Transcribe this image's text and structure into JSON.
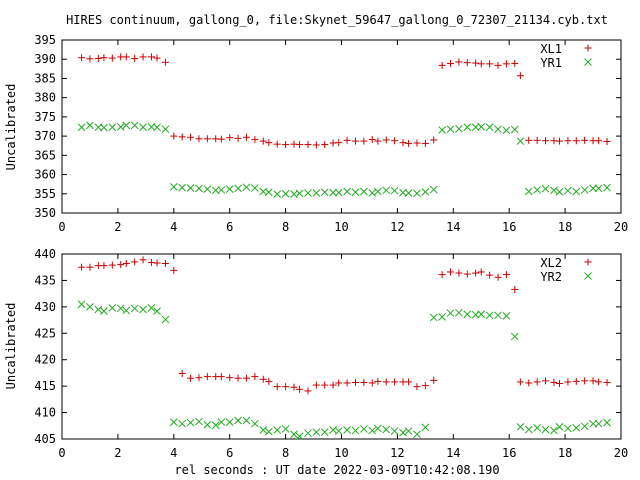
{
  "page_title": "HIRES continuum, gallong_0, file:Skynet_59647_gallong_0_72307_21134.cyb.txt",
  "xlabel": "rel seconds : UT date 2022-03-09T10:42:08.190",
  "colors": {
    "red": "#cc0000",
    "green": "#22aa22",
    "axis": "#000000"
  },
  "chart_data": [
    {
      "type": "scatter",
      "ylabel": "Uncalibrated",
      "xlim": [
        0,
        20
      ],
      "ylim": [
        350,
        395
      ],
      "xticks": [
        "0",
        "2",
        "4",
        "6",
        "8",
        "10",
        "12",
        "14",
        "16",
        "18",
        "20"
      ],
      "yticks": [
        "350",
        "355",
        "360",
        "365",
        "370",
        "375",
        "380",
        "385",
        "390",
        "395"
      ],
      "legend_position": "top-right",
      "series": [
        {
          "name": "XL1",
          "marker": "plus",
          "color": "#cc0000",
          "x": [
            0.7,
            1.0,
            1.3,
            1.5,
            1.8,
            2.1,
            2.3,
            2.6,
            2.9,
            3.2,
            3.4,
            3.7,
            4.0,
            4.3,
            4.6,
            4.9,
            5.2,
            5.5,
            5.7,
            6.0,
            6.3,
            6.6,
            6.9,
            7.2,
            7.4,
            7.7,
            8.0,
            8.3,
            8.5,
            8.8,
            9.1,
            9.4,
            9.7,
            9.9,
            10.2,
            10.5,
            10.8,
            11.1,
            11.3,
            11.6,
            11.9,
            12.2,
            12.4,
            12.7,
            13.0,
            13.3,
            13.6,
            13.9,
            14.2,
            14.5,
            14.8,
            15.0,
            15.3,
            15.6,
            15.9,
            16.2,
            16.4,
            16.7,
            17.0,
            17.3,
            17.6,
            17.8,
            18.1,
            18.4,
            18.7,
            19.0,
            19.2,
            19.5
          ],
          "y": [
            390.4,
            390.1,
            390.2,
            390.4,
            390.3,
            390.6,
            390.6,
            390.2,
            390.6,
            390.6,
            390.3,
            389.2,
            370.0,
            369.8,
            369.7,
            369.3,
            369.3,
            369.3,
            369.2,
            369.6,
            369.4,
            369.7,
            369.1,
            368.7,
            368.3,
            367.9,
            367.8,
            367.9,
            367.8,
            367.8,
            367.7,
            367.8,
            368.2,
            368.3,
            368.9,
            368.7,
            368.7,
            369.1,
            368.7,
            369.0,
            368.8,
            368.3,
            368.1,
            368.2,
            368.1,
            369.0,
            388.4,
            388.9,
            389.3,
            389.1,
            389.0,
            388.8,
            388.8,
            388.4,
            388.8,
            388.9,
            385.7,
            368.9,
            368.9,
            368.8,
            368.8,
            368.7,
            368.8,
            368.8,
            368.9,
            368.8,
            368.8,
            368.6
          ]
        },
        {
          "name": "YR1",
          "marker": "cross",
          "color": "#22aa22",
          "x": [
            0.7,
            1.0,
            1.3,
            1.5,
            1.8,
            2.1,
            2.3,
            2.6,
            2.9,
            3.2,
            3.4,
            3.7,
            4.0,
            4.3,
            4.6,
            4.9,
            5.2,
            5.5,
            5.7,
            6.0,
            6.3,
            6.6,
            6.9,
            7.2,
            7.4,
            7.7,
            8.0,
            8.3,
            8.5,
            8.8,
            9.1,
            9.4,
            9.7,
            9.9,
            10.2,
            10.5,
            10.8,
            11.1,
            11.3,
            11.6,
            11.9,
            12.2,
            12.4,
            12.7,
            13.0,
            13.3,
            13.6,
            13.9,
            14.2,
            14.5,
            14.8,
            15.0,
            15.3,
            15.6,
            15.9,
            16.2,
            16.4,
            16.7,
            17.0,
            17.3,
            17.6,
            17.8,
            18.1,
            18.4,
            18.7,
            19.0,
            19.2,
            19.5
          ],
          "y": [
            372.3,
            372.8,
            372.3,
            372.2,
            372.3,
            372.4,
            372.8,
            372.8,
            372.3,
            372.4,
            372.3,
            371.8,
            356.8,
            356.6,
            356.5,
            356.4,
            356.2,
            355.9,
            356.0,
            356.2,
            356.4,
            356.7,
            356.5,
            355.6,
            355.4,
            354.9,
            355.0,
            354.9,
            355.1,
            355.2,
            355.2,
            355.4,
            355.3,
            355.3,
            355.6,
            355.4,
            355.6,
            355.2,
            355.6,
            355.9,
            355.8,
            355.3,
            355.2,
            355.1,
            355.5,
            356.1,
            371.6,
            371.8,
            371.9,
            372.3,
            372.3,
            372.4,
            372.3,
            371.8,
            371.5,
            371.7,
            368.7,
            355.6,
            356.0,
            356.3,
            355.9,
            355.5,
            355.8,
            355.6,
            356.0,
            356.4,
            356.4,
            356.6
          ]
        }
      ]
    },
    {
      "type": "scatter",
      "ylabel": "Uncalibrated",
      "xlim": [
        0,
        20
      ],
      "ylim": [
        405,
        440
      ],
      "xticks": [
        "0",
        "2",
        "4",
        "6",
        "8",
        "10",
        "12",
        "14",
        "16",
        "18",
        "20"
      ],
      "yticks": [
        "405",
        "410",
        "415",
        "420",
        "425",
        "430",
        "435",
        "440"
      ],
      "legend_position": "top-right",
      "series": [
        {
          "name": "XL2",
          "marker": "plus",
          "color": "#cc0000",
          "x": [
            0.7,
            1.0,
            1.3,
            1.5,
            1.8,
            2.1,
            2.3,
            2.6,
            2.9,
            3.2,
            3.4,
            3.7,
            4.0,
            4.3,
            4.6,
            4.9,
            5.2,
            5.5,
            5.7,
            6.0,
            6.3,
            6.6,
            6.9,
            7.2,
            7.4,
            7.7,
            8.0,
            8.3,
            8.5,
            8.8,
            9.1,
            9.4,
            9.7,
            9.9,
            10.2,
            10.5,
            10.8,
            11.1,
            11.3,
            11.6,
            11.9,
            12.2,
            12.4,
            12.7,
            13.0,
            13.3,
            13.6,
            13.9,
            14.2,
            14.5,
            14.8,
            15.0,
            15.3,
            15.6,
            15.9,
            16.2,
            16.4,
            16.7,
            17.0,
            17.3,
            17.6,
            17.8,
            18.1,
            18.4,
            18.7,
            19.0,
            19.2,
            19.5
          ],
          "y": [
            437.5,
            437.5,
            437.8,
            437.8,
            437.9,
            438.0,
            438.2,
            438.5,
            438.9,
            438.4,
            438.3,
            438.2,
            436.9,
            417.4,
            416.5,
            416.6,
            416.8,
            416.8,
            416.8,
            416.6,
            416.5,
            416.5,
            416.8,
            416.3,
            415.9,
            414.9,
            414.9,
            414.8,
            414.4,
            414.1,
            415.2,
            415.2,
            415.2,
            415.6,
            415.6,
            415.7,
            415.7,
            415.6,
            415.9,
            415.8,
            415.8,
            415.8,
            415.8,
            414.9,
            415.1,
            416.1,
            436.1,
            436.6,
            436.4,
            436.2,
            436.4,
            436.6,
            436.0,
            435.6,
            436.1,
            433.3,
            415.8,
            415.6,
            415.8,
            416.0,
            415.7,
            415.5,
            415.8,
            415.9,
            416.0,
            416.0,
            415.8,
            415.7
          ]
        },
        {
          "name": "YR2",
          "marker": "cross",
          "color": "#22aa22",
          "x": [
            0.7,
            1.0,
            1.3,
            1.5,
            1.8,
            2.1,
            2.3,
            2.6,
            2.9,
            3.2,
            3.4,
            3.7,
            4.0,
            4.3,
            4.6,
            4.9,
            5.2,
            5.5,
            5.7,
            6.0,
            6.3,
            6.6,
            6.9,
            7.2,
            7.4,
            7.7,
            8.0,
            8.3,
            8.5,
            8.8,
            9.1,
            9.4,
            9.7,
            9.9,
            10.2,
            10.5,
            10.8,
            11.1,
            11.3,
            11.6,
            11.9,
            12.2,
            12.4,
            12.7,
            13.0,
            13.3,
            13.6,
            13.9,
            14.2,
            14.5,
            14.8,
            15.0,
            15.3,
            15.6,
            15.9,
            16.2,
            16.4,
            16.7,
            17.0,
            17.3,
            17.6,
            17.8,
            18.1,
            18.4,
            18.7,
            19.0,
            19.2,
            19.5
          ],
          "y": [
            430.5,
            430.0,
            429.5,
            429.2,
            429.8,
            429.7,
            429.3,
            429.7,
            429.5,
            429.8,
            429.2,
            427.6,
            408.2,
            407.9,
            408.1,
            408.3,
            407.7,
            407.6,
            408.2,
            408.2,
            408.5,
            408.5,
            407.9,
            406.7,
            406.4,
            406.7,
            406.9,
            405.9,
            405.5,
            406.1,
            406.3,
            406.3,
            406.7,
            406.5,
            406.7,
            406.6,
            406.9,
            406.6,
            407.0,
            406.8,
            406.5,
            406.2,
            406.5,
            405.9,
            407.2,
            428.0,
            428.1,
            428.8,
            428.9,
            428.6,
            428.5,
            428.6,
            428.4,
            428.4,
            428.3,
            424.4,
            407.3,
            406.8,
            407.1,
            406.8,
            406.6,
            407.3,
            407.0,
            407.1,
            407.4,
            407.9,
            407.9,
            408.1
          ]
        }
      ]
    }
  ]
}
